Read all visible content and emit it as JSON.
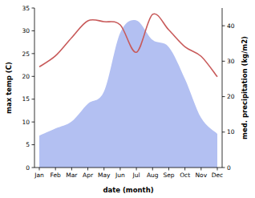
{
  "chart_data": {
    "type": "line",
    "x_label": "date (month)",
    "y_label": "max temp (C)",
    "y2_label": "med. precipitation (kg/m2)",
    "categories": [
      "Jan",
      "Feb",
      "Mar",
      "Apr",
      "May",
      "Jun",
      "Jul",
      "Aug",
      "Sep",
      "Oct",
      "Nov",
      "Dec"
    ],
    "ylim": [
      0,
      35
    ],
    "yticks": [
      0,
      5,
      10,
      15,
      20,
      25,
      30,
      35
    ],
    "y2lim": [
      0,
      45
    ],
    "y2ticks": [
      0,
      10,
      20,
      30,
      40
    ],
    "grid": false,
    "series": [
      {
        "type": "area",
        "axis": "y2",
        "color": "#b3c0f2",
        "values": [
          9,
          11,
          13,
          18,
          21.5,
          38,
          41.5,
          36,
          34,
          25,
          14,
          9.5
        ]
      },
      {
        "type": "line",
        "color": "#c85a5a",
        "values": [
          22.1,
          24.5,
          28.5,
          32.2,
          32.0,
          31.3,
          25.3,
          33.6,
          30.2,
          26.5,
          24.4,
          19.9
        ]
      }
    ]
  }
}
